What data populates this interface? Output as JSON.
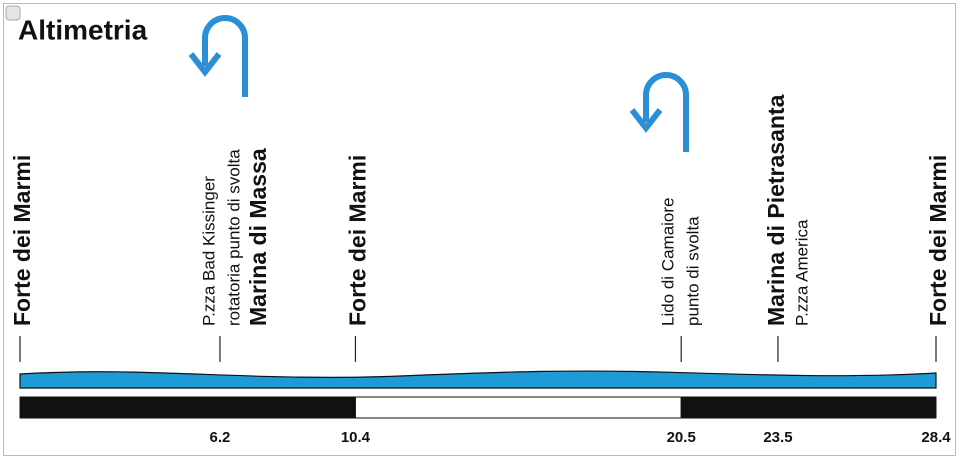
{
  "title": "Altimetria",
  "distance_unit_range": [
    0,
    28.4
  ],
  "waypoints": [
    {
      "km": 0,
      "lines": [
        {
          "text": "Forte dei Marmi",
          "bold": true
        }
      ]
    },
    {
      "km": 6.2,
      "km_label": "6.2",
      "lines": [
        {
          "text": "P.zza Bad Kissinger",
          "bold": false
        },
        {
          "text": "rotatoria punto di svolta",
          "bold": false
        },
        {
          "text": "Marina di Massa",
          "bold": true
        }
      ]
    },
    {
      "km": 10.4,
      "km_label": "10.4",
      "lines": [
        {
          "text": "Forte dei Marmi",
          "bold": true
        }
      ]
    },
    {
      "km": 20.5,
      "km_label": "20.5",
      "lines": [
        {
          "text": "Lido di Camaiore",
          "bold": false
        },
        {
          "text": "punto di svolta",
          "bold": false
        }
      ]
    },
    {
      "km": 23.5,
      "km_label": "23.5",
      "lines": [
        {
          "text": "Marina di Pietrasanta",
          "bold": true
        },
        {
          "text": "P.zza America",
          "bold": false
        }
      ]
    },
    {
      "km": 28.4,
      "km_label": "28.4",
      "lines": [
        {
          "text": "Forte dei Marmi",
          "bold": true
        }
      ]
    }
  ]
}
